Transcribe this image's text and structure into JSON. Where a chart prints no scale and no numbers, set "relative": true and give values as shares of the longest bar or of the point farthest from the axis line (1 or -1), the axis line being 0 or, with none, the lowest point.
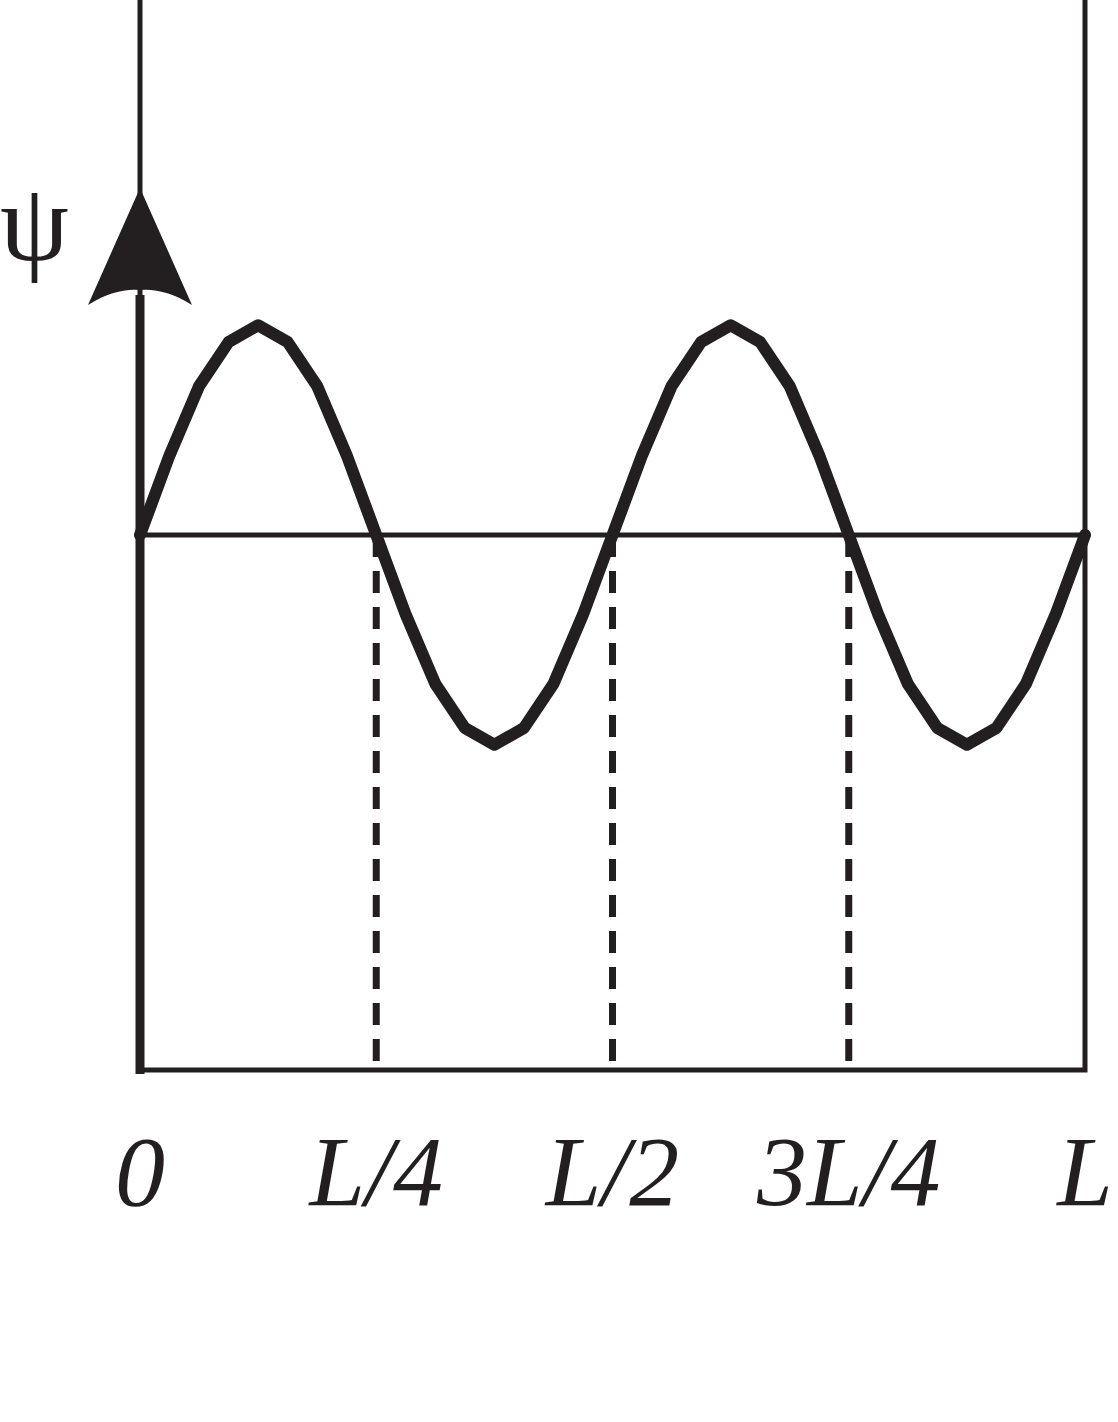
{
  "chart_data": {
    "type": "line",
    "ylabel": "ψ",
    "relative": true,
    "categories": [
      "0",
      null,
      null,
      null,
      null,
      null,
      null,
      null,
      "L/4",
      null,
      null,
      null,
      null,
      null,
      null,
      null,
      "L/2",
      null,
      null,
      null,
      null,
      null,
      null,
      null,
      "3L/4",
      null,
      null,
      null,
      null,
      null,
      null,
      null,
      "L"
    ],
    "series": [
      {
        "color": "#231f20",
        "values": [
          0,
          0.38,
          0.71,
          0.92,
          1,
          0.92,
          0.71,
          0.38,
          0,
          -0.38,
          -0.71,
          -0.92,
          -1,
          -0.92,
          -0.71,
          -0.38,
          0,
          0.38,
          0.71,
          0.92,
          1,
          0.92,
          0.71,
          0.38,
          0,
          -0.38,
          -0.71,
          -0.92,
          -1,
          -0.92,
          -0.71,
          -0.38,
          0
        ]
      }
    ],
    "ref_lines": [
      {
        "axis": "x",
        "value": "L/4",
        "line_style": "dashed"
      },
      {
        "axis": "x",
        "value": "L/2",
        "line_style": "dashed"
      },
      {
        "axis": "x",
        "value": "3L/4",
        "line_style": "dashed"
      }
    ],
    "legend": false,
    "marker": "none",
    "line_style": "solid"
  }
}
